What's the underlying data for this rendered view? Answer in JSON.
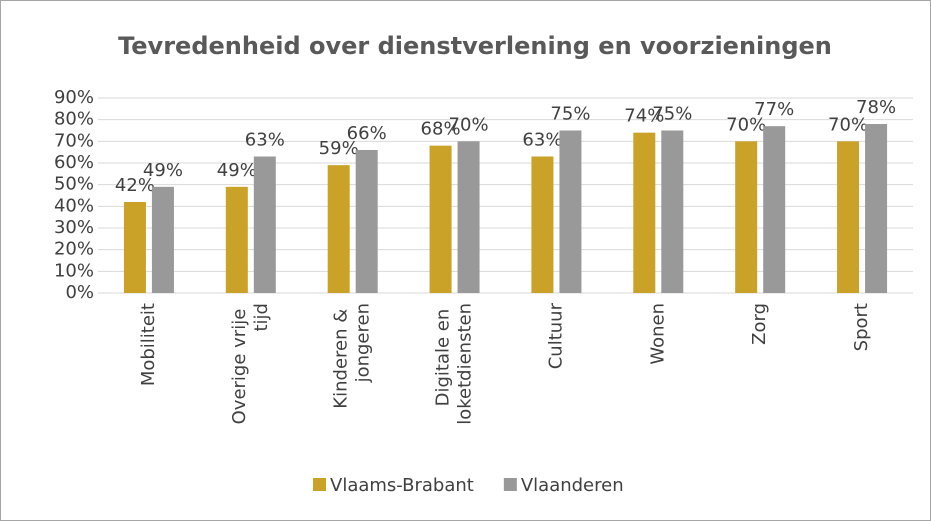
{
  "chart_data": {
    "type": "bar",
    "title": "Tevredenheid over dienstverlening en voorzieningen",
    "categories": [
      "Mobiliteit",
      "Overige vrije tijd",
      "Kinderen & jongeren",
      "Digitale en loketdiensten",
      "Cultuur",
      "Wonen",
      "Zorg",
      "Sport"
    ],
    "series": [
      {
        "name": "Vlaams-Brabant",
        "color": "#c9a227",
        "values": [
          42,
          49,
          59,
          68,
          63,
          74,
          70,
          70
        ],
        "value_labels": [
          "42%",
          "49%",
          "59%",
          "68%",
          "63%",
          "74%",
          "70%",
          "70%"
        ]
      },
      {
        "name": "Vlaanderen",
        "color": "#999999",
        "values": [
          49,
          63,
          66,
          70,
          75,
          75,
          77,
          78
        ],
        "value_labels": [
          "49%",
          "63%",
          "66%",
          "70%",
          "75%",
          "75%",
          "77%",
          "78%"
        ]
      }
    ],
    "ylim": [
      0,
      90
    ],
    "yticks": [
      {
        "value": 0,
        "label": "0%"
      },
      {
        "value": 10,
        "label": "10%"
      },
      {
        "value": 20,
        "label": "20%"
      },
      {
        "value": 30,
        "label": "30%"
      },
      {
        "value": 40,
        "label": "40%"
      },
      {
        "value": 50,
        "label": "50%"
      },
      {
        "value": 60,
        "label": "60%"
      },
      {
        "value": 70,
        "label": "70%"
      },
      {
        "value": 80,
        "label": "80%"
      },
      {
        "value": 90,
        "label": "90%"
      }
    ],
    "grid": true,
    "legend": "bottom"
  }
}
